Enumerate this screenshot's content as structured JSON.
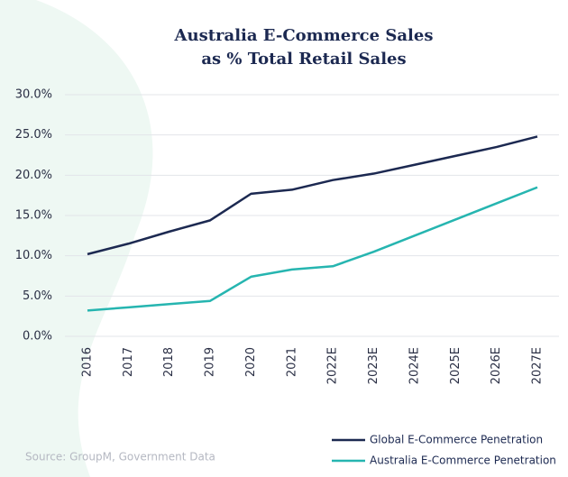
{
  "chart_data": {
    "type": "line",
    "title": "Australia E-Commerce Sales",
    "subtitle": "as % Total Retail Sales",
    "categories": [
      "2016",
      "2017",
      "2018",
      "2019",
      "2020",
      "2021",
      "2022E",
      "2023E",
      "2024E",
      "2025E",
      "2026E",
      "2027E"
    ],
    "series": [
      {
        "name": "Global E-Commerce Penetration",
        "color": "#1c2951",
        "values": [
          10.2,
          11.5,
          13.0,
          14.4,
          17.7,
          18.2,
          19.4,
          20.2,
          21.3,
          22.4,
          23.5,
          24.8
        ]
      },
      {
        "name": "Australia E-Commerce Penetration",
        "color": "#26b5b0",
        "values": [
          3.2,
          3.6,
          4.0,
          4.4,
          7.4,
          8.3,
          8.7,
          10.5,
          12.5,
          14.5,
          16.5,
          18.5
        ]
      }
    ],
    "ylim": [
      0,
      30
    ],
    "yticks": [
      {
        "value": 0,
        "label": "0.0%"
      },
      {
        "value": 5,
        "label": "5.0%"
      },
      {
        "value": 10,
        "label": "10.0%"
      },
      {
        "value": 15,
        "label": "15.0%"
      },
      {
        "value": 20,
        "label": "20.0%"
      },
      {
        "value": 25,
        "label": "25.0%"
      },
      {
        "value": 30,
        "label": "30.0%"
      }
    ],
    "grid": true,
    "legend": "bottom-right",
    "source": "Source: GroupM, Government Data"
  }
}
